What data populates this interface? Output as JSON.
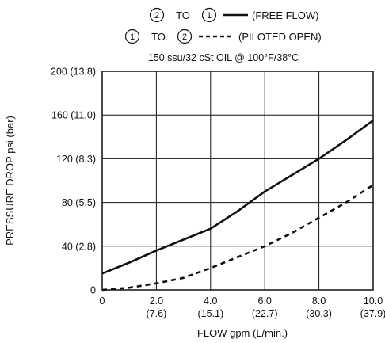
{
  "chart_data": {
    "type": "line",
    "title": "",
    "legend": {
      "placement": "top-center",
      "entries": [
        {
          "from": "2",
          "to": "1",
          "connector": "TO",
          "style": "solid",
          "label": "(FREE FLOW)"
        },
        {
          "from": "1",
          "to": "2",
          "connector": "TO",
          "style": "dashed",
          "label": "(PILOTED OPEN)"
        }
      ]
    },
    "conditions": "150 ssu/32 cSt OIL @ 100°F/38°C",
    "xlabel": "FLOW gpm (L/min.)",
    "ylabel": "PRESSURE DROP psi (bar)",
    "xlim": [
      0,
      10
    ],
    "ylim": [
      0,
      200
    ],
    "grid": true,
    "xticks": [
      {
        "value": 0,
        "primary": "0",
        "secondary": ""
      },
      {
        "value": 2,
        "primary": "2.0",
        "secondary": "(7.6)"
      },
      {
        "value": 4,
        "primary": "4.0",
        "secondary": "(15.1)"
      },
      {
        "value": 6,
        "primary": "6.0",
        "secondary": "(22.7)"
      },
      {
        "value": 8,
        "primary": "8.0",
        "secondary": "(30.3)"
      },
      {
        "value": 10,
        "primary": "10.0",
        "secondary": "(37.9)"
      }
    ],
    "yticks": [
      {
        "value": 0,
        "label": "0"
      },
      {
        "value": 40,
        "label": "40 (2.8)"
      },
      {
        "value": 80,
        "label": "80 (5.5)"
      },
      {
        "value": 120,
        "label": "120 (8.3)"
      },
      {
        "value": 160,
        "label": "160 (11.0)"
      },
      {
        "value": 200,
        "label": "200 (13.8)"
      }
    ],
    "series": [
      {
        "name": "(FREE FLOW)",
        "style": "solid",
        "x": [
          0,
          1,
          2,
          3,
          4,
          5,
          6,
          7,
          8,
          9,
          10
        ],
        "y": [
          15,
          25,
          36,
          46,
          56,
          72,
          90,
          105,
          120,
          137,
          155
        ]
      },
      {
        "name": "(PILOTED OPEN)",
        "style": "dashed",
        "x": [
          0,
          1,
          2,
          3,
          4,
          5,
          6,
          7,
          8,
          9,
          10
        ],
        "y": [
          0,
          2,
          6,
          11,
          20,
          30,
          40,
          52,
          66,
          80,
          96
        ]
      }
    ]
  }
}
